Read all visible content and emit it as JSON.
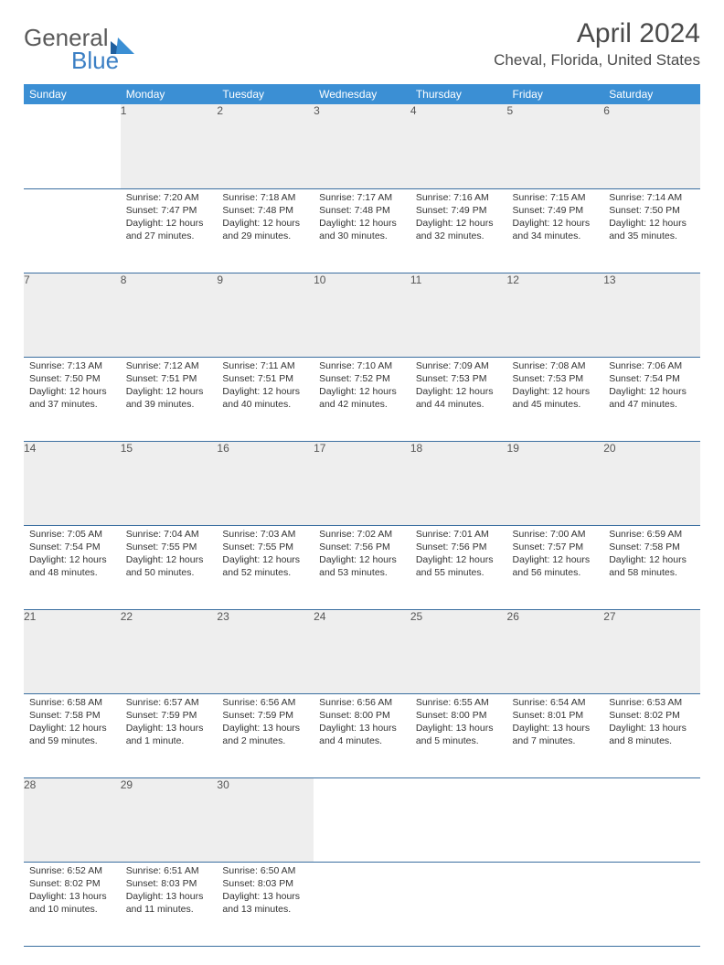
{
  "logo": {
    "word1": "General",
    "word2": "Blue"
  },
  "title": "April 2024",
  "location": "Cheval, Florida, United States",
  "colors": {
    "header_bg": "#3b8fd4",
    "header_text": "#ffffff",
    "daynum_bg": "#eeeeee",
    "row_border": "#3b6fa0",
    "logo_gray": "#5a5a5a",
    "logo_blue": "#3b7fc4",
    "text": "#333333"
  },
  "weekdays": [
    "Sunday",
    "Monday",
    "Tuesday",
    "Wednesday",
    "Thursday",
    "Friday",
    "Saturday"
  ],
  "weeks": [
    {
      "nums": [
        "",
        "1",
        "2",
        "3",
        "4",
        "5",
        "6"
      ],
      "cells": [
        null,
        {
          "sunrise": "Sunrise: 7:20 AM",
          "sunset": "Sunset: 7:47 PM",
          "day1": "Daylight: 12 hours",
          "day2": "and 27 minutes."
        },
        {
          "sunrise": "Sunrise: 7:18 AM",
          "sunset": "Sunset: 7:48 PM",
          "day1": "Daylight: 12 hours",
          "day2": "and 29 minutes."
        },
        {
          "sunrise": "Sunrise: 7:17 AM",
          "sunset": "Sunset: 7:48 PM",
          "day1": "Daylight: 12 hours",
          "day2": "and 30 minutes."
        },
        {
          "sunrise": "Sunrise: 7:16 AM",
          "sunset": "Sunset: 7:49 PM",
          "day1": "Daylight: 12 hours",
          "day2": "and 32 minutes."
        },
        {
          "sunrise": "Sunrise: 7:15 AM",
          "sunset": "Sunset: 7:49 PM",
          "day1": "Daylight: 12 hours",
          "day2": "and 34 minutes."
        },
        {
          "sunrise": "Sunrise: 7:14 AM",
          "sunset": "Sunset: 7:50 PM",
          "day1": "Daylight: 12 hours",
          "day2": "and 35 minutes."
        }
      ]
    },
    {
      "nums": [
        "7",
        "8",
        "9",
        "10",
        "11",
        "12",
        "13"
      ],
      "cells": [
        {
          "sunrise": "Sunrise: 7:13 AM",
          "sunset": "Sunset: 7:50 PM",
          "day1": "Daylight: 12 hours",
          "day2": "and 37 minutes."
        },
        {
          "sunrise": "Sunrise: 7:12 AM",
          "sunset": "Sunset: 7:51 PM",
          "day1": "Daylight: 12 hours",
          "day2": "and 39 minutes."
        },
        {
          "sunrise": "Sunrise: 7:11 AM",
          "sunset": "Sunset: 7:51 PM",
          "day1": "Daylight: 12 hours",
          "day2": "and 40 minutes."
        },
        {
          "sunrise": "Sunrise: 7:10 AM",
          "sunset": "Sunset: 7:52 PM",
          "day1": "Daylight: 12 hours",
          "day2": "and 42 minutes."
        },
        {
          "sunrise": "Sunrise: 7:09 AM",
          "sunset": "Sunset: 7:53 PM",
          "day1": "Daylight: 12 hours",
          "day2": "and 44 minutes."
        },
        {
          "sunrise": "Sunrise: 7:08 AM",
          "sunset": "Sunset: 7:53 PM",
          "day1": "Daylight: 12 hours",
          "day2": "and 45 minutes."
        },
        {
          "sunrise": "Sunrise: 7:06 AM",
          "sunset": "Sunset: 7:54 PM",
          "day1": "Daylight: 12 hours",
          "day2": "and 47 minutes."
        }
      ]
    },
    {
      "nums": [
        "14",
        "15",
        "16",
        "17",
        "18",
        "19",
        "20"
      ],
      "cells": [
        {
          "sunrise": "Sunrise: 7:05 AM",
          "sunset": "Sunset: 7:54 PM",
          "day1": "Daylight: 12 hours",
          "day2": "and 48 minutes."
        },
        {
          "sunrise": "Sunrise: 7:04 AM",
          "sunset": "Sunset: 7:55 PM",
          "day1": "Daylight: 12 hours",
          "day2": "and 50 minutes."
        },
        {
          "sunrise": "Sunrise: 7:03 AM",
          "sunset": "Sunset: 7:55 PM",
          "day1": "Daylight: 12 hours",
          "day2": "and 52 minutes."
        },
        {
          "sunrise": "Sunrise: 7:02 AM",
          "sunset": "Sunset: 7:56 PM",
          "day1": "Daylight: 12 hours",
          "day2": "and 53 minutes."
        },
        {
          "sunrise": "Sunrise: 7:01 AM",
          "sunset": "Sunset: 7:56 PM",
          "day1": "Daylight: 12 hours",
          "day2": "and 55 minutes."
        },
        {
          "sunrise": "Sunrise: 7:00 AM",
          "sunset": "Sunset: 7:57 PM",
          "day1": "Daylight: 12 hours",
          "day2": "and 56 minutes."
        },
        {
          "sunrise": "Sunrise: 6:59 AM",
          "sunset": "Sunset: 7:58 PM",
          "day1": "Daylight: 12 hours",
          "day2": "and 58 minutes."
        }
      ]
    },
    {
      "nums": [
        "21",
        "22",
        "23",
        "24",
        "25",
        "26",
        "27"
      ],
      "cells": [
        {
          "sunrise": "Sunrise: 6:58 AM",
          "sunset": "Sunset: 7:58 PM",
          "day1": "Daylight: 12 hours",
          "day2": "and 59 minutes."
        },
        {
          "sunrise": "Sunrise: 6:57 AM",
          "sunset": "Sunset: 7:59 PM",
          "day1": "Daylight: 13 hours",
          "day2": "and 1 minute."
        },
        {
          "sunrise": "Sunrise: 6:56 AM",
          "sunset": "Sunset: 7:59 PM",
          "day1": "Daylight: 13 hours",
          "day2": "and 2 minutes."
        },
        {
          "sunrise": "Sunrise: 6:56 AM",
          "sunset": "Sunset: 8:00 PM",
          "day1": "Daylight: 13 hours",
          "day2": "and 4 minutes."
        },
        {
          "sunrise": "Sunrise: 6:55 AM",
          "sunset": "Sunset: 8:00 PM",
          "day1": "Daylight: 13 hours",
          "day2": "and 5 minutes."
        },
        {
          "sunrise": "Sunrise: 6:54 AM",
          "sunset": "Sunset: 8:01 PM",
          "day1": "Daylight: 13 hours",
          "day2": "and 7 minutes."
        },
        {
          "sunrise": "Sunrise: 6:53 AM",
          "sunset": "Sunset: 8:02 PM",
          "day1": "Daylight: 13 hours",
          "day2": "and 8 minutes."
        }
      ]
    },
    {
      "nums": [
        "28",
        "29",
        "30",
        "",
        "",
        "",
        ""
      ],
      "cells": [
        {
          "sunrise": "Sunrise: 6:52 AM",
          "sunset": "Sunset: 8:02 PM",
          "day1": "Daylight: 13 hours",
          "day2": "and 10 minutes."
        },
        {
          "sunrise": "Sunrise: 6:51 AM",
          "sunset": "Sunset: 8:03 PM",
          "day1": "Daylight: 13 hours",
          "day2": "and 11 minutes."
        },
        {
          "sunrise": "Sunrise: 6:50 AM",
          "sunset": "Sunset: 8:03 PM",
          "day1": "Daylight: 13 hours",
          "day2": "and 13 minutes."
        },
        null,
        null,
        null,
        null
      ]
    }
  ]
}
